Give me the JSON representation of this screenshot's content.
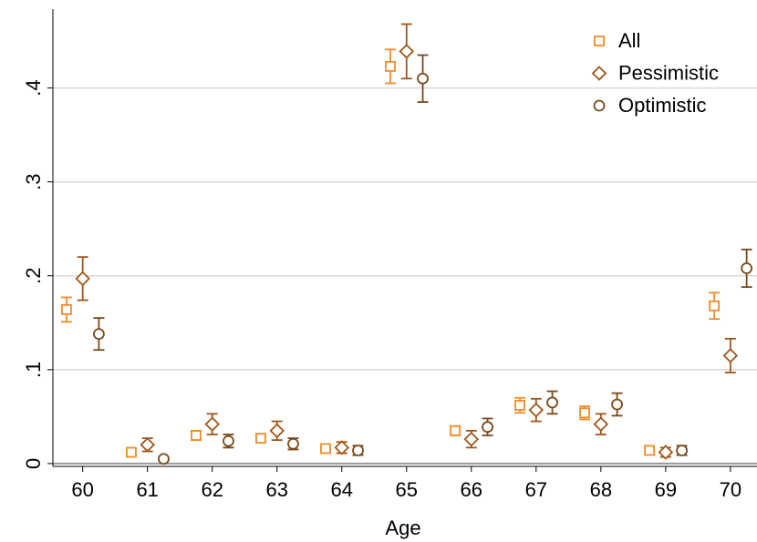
{
  "chart_data": {
    "type": "errorbar-scatter",
    "x_label": "Age",
    "x": [
      60,
      61,
      62,
      63,
      64,
      65,
      66,
      67,
      68,
      69,
      70
    ],
    "xlim": [
      59.54,
      70.41
    ],
    "xticks": [
      60,
      61,
      62,
      63,
      64,
      65,
      66,
      67,
      68,
      69,
      70
    ],
    "ylim": [
      -0.003,
      0.484
    ],
    "yticks": [
      0,
      {
        "value": 0.1,
        "label": ".1"
      },
      {
        "value": 0.2,
        "label": ".2"
      },
      {
        "value": 0.3,
        "label": ".3"
      },
      {
        "value": 0.4,
        "label": ".4"
      }
    ],
    "grid": true,
    "legend": "top-right",
    "series": [
      {
        "name": "All",
        "marker": "square",
        "color": "#f28c28",
        "values": [
          0.164,
          0.012,
          0.03,
          0.027,
          0.016,
          0.423,
          0.035,
          0.062,
          0.054,
          0.014,
          0.168
        ],
        "errors": [
          0.013,
          0.003,
          0.005,
          0.004,
          0.002,
          0.018,
          0.005,
          0.008,
          0.007,
          0.002,
          0.014
        ]
      },
      {
        "name": "Pessimistic",
        "marker": "diamond",
        "color": "#a0561a",
        "values": [
          0.197,
          0.02,
          0.042,
          0.035,
          0.017,
          0.439,
          0.026,
          0.057,
          0.042,
          0.012,
          0.115
        ],
        "errors": [
          0.023,
          0.007,
          0.011,
          0.01,
          0.006,
          0.029,
          0.009,
          0.012,
          0.011,
          0.005,
          0.018
        ]
      },
      {
        "name": "Optimistic",
        "marker": "circle",
        "color": "#7a4a1a",
        "values": [
          0.138,
          0.005,
          0.024,
          0.021,
          0.014,
          0.41,
          0.039,
          0.065,
          0.063,
          0.014,
          0.208
        ],
        "errors": [
          0.017,
          0.002,
          0.007,
          0.006,
          0.005,
          0.025,
          0.009,
          0.012,
          0.012,
          0.005,
          0.02
        ]
      }
    ]
  }
}
